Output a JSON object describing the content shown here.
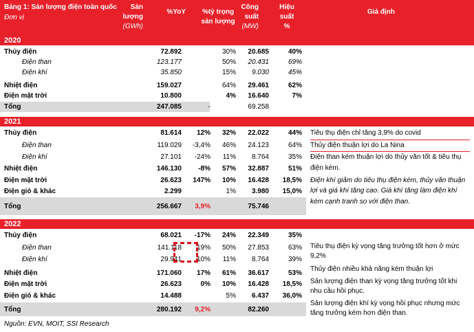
{
  "table_title": "Bảng 1: Sản lượng điện toàn quốc",
  "unit_label": "Đơn vị",
  "headers": {
    "output_l1": "Sản",
    "output_l2": "lượng",
    "output_unit": "(GWh)",
    "yoy": "%YoY",
    "share_l1": "%tỷ trọng",
    "share_l2": "sản lượng",
    "cap_l1": "Công",
    "cap_l2": "suất",
    "cap_unit": "(MW)",
    "eff_l1": "Hiệu",
    "eff_l2": "suất",
    "eff_unit": "%",
    "assump": "Giả định"
  },
  "y2020": {
    "label": "2020",
    "rows": [
      {
        "name": "Thủy điện",
        "output": "72.892",
        "yoy": "",
        "share": "30%",
        "cap": "20.685",
        "eff": "40%"
      },
      {
        "name": "Điện than",
        "output": "123.177",
        "yoy": "",
        "share": "50%",
        "cap": "20.431",
        "eff": "69%"
      },
      {
        "name": "Điện khí",
        "output": "35.850",
        "yoy": "",
        "share": "15%",
        "cap": "9.030",
        "eff": "45%"
      },
      {
        "name": "Nhiệt điện",
        "output": "159.027",
        "yoy": "",
        "share": "64%",
        "cap": "29.461",
        "eff": "62%"
      },
      {
        "name": "Điện mặt trời",
        "output": "10.800",
        "yoy": "",
        "share": "4%",
        "cap": "16.640",
        "eff": "7%"
      }
    ],
    "total": {
      "name": "Tổng",
      "output": "247.085",
      "yoy": "-",
      "share": "",
      "cap": "69.258",
      "eff": ""
    }
  },
  "y2021": {
    "label": "2021",
    "rows": [
      {
        "name": "Thủy điện",
        "output": "81.614",
        "yoy": "12%",
        "share": "32%",
        "cap": "22.022",
        "eff": "44%"
      },
      {
        "name": "Điện than",
        "output": "119.029",
        "yoy": "-3,4%",
        "share": "46%",
        "cap": "24.123",
        "eff": "64%"
      },
      {
        "name": "Điện khí",
        "output": "27.101",
        "yoy": "-24%",
        "share": "11%",
        "cap": "8.764",
        "eff": "35%"
      },
      {
        "name": "Nhiệt điện",
        "output": "146.130",
        "yoy": "-8%",
        "share": "57%",
        "cap": "32.887",
        "eff": "51%"
      },
      {
        "name": "Điện mặt trời",
        "output": "26.623",
        "yoy": "147%",
        "share": "10%",
        "cap": "16.428",
        "eff": "18,5%"
      },
      {
        "name": "Điện gió & khác",
        "output": "2.299",
        "yoy": "",
        "share": "1%",
        "cap": "3.980",
        "eff": "15,0%"
      }
    ],
    "total": {
      "name": "Tổng",
      "output": "256.667",
      "yoy": "3,9%",
      "share": "",
      "cap": "75.746",
      "eff": ""
    },
    "notes": [
      "Tiêu thụ điện chỉ tăng 3,9% do covid",
      "Thủy điện thuận lợi do La Nina",
      "Điện than kém thuận lợi do thủy văn tốt & tiêu thụ",
      "điện kém.",
      "Điện khí giảm do tiêu thụ điện kém, thủy văn thuận",
      "lợi và giá khí tăng cao. Giá khí tăng làm điện khí",
      "kém cạnh tranh so với điện than."
    ]
  },
  "y2022": {
    "label": "2022",
    "rows": [
      {
        "name": "Thủy điện",
        "output": "68.021",
        "yoy": "-17%",
        "share": "24%",
        "cap": "22.349",
        "eff": "35%"
      },
      {
        "name": "Điện than",
        "output": "141.118",
        "yoy": "19%",
        "share": "50%",
        "cap": "27.853",
        "eff": "63%"
      },
      {
        "name": "Điện khí",
        "output": "29.941",
        "yoy": "10%",
        "share": "11%",
        "cap": "8.764",
        "eff": "39%"
      },
      {
        "name": "Nhiệt điện",
        "output": "171.060",
        "yoy": "17%",
        "share": "61%",
        "cap": "36.617",
        "eff": "53%"
      },
      {
        "name": "Điện mặt trời",
        "output": "26.623",
        "yoy": "0%",
        "share": "10%",
        "cap": "16.428",
        "eff": "18,5%"
      },
      {
        "name": "Điện gió & khác",
        "output": "14.488",
        "yoy": "",
        "share": "5%",
        "cap": "6.437",
        "eff": "36,0%"
      }
    ],
    "total": {
      "name": "Tổng",
      "output": "280.192",
      "yoy": "9,2%",
      "share": "",
      "cap": "82.260",
      "eff": ""
    },
    "notes": [
      "Tiêu thụ điện kỳ vọng tăng trưởng tốt hơn ở mức",
      "9,2%",
      "Thủy điện nhiều khả năng kém thuận lợi",
      "Sản lượng điện than kỳ vọng tăng trưởng tốt khi",
      "nhu cầu hồi phục.",
      "Sản lượng điện khí kỳ vọng hồi phục nhưng mức",
      "tăng trưởng kém hơn điện than."
    ]
  },
  "source": "Nguồn: EVN, MOIT, SSI Research"
}
